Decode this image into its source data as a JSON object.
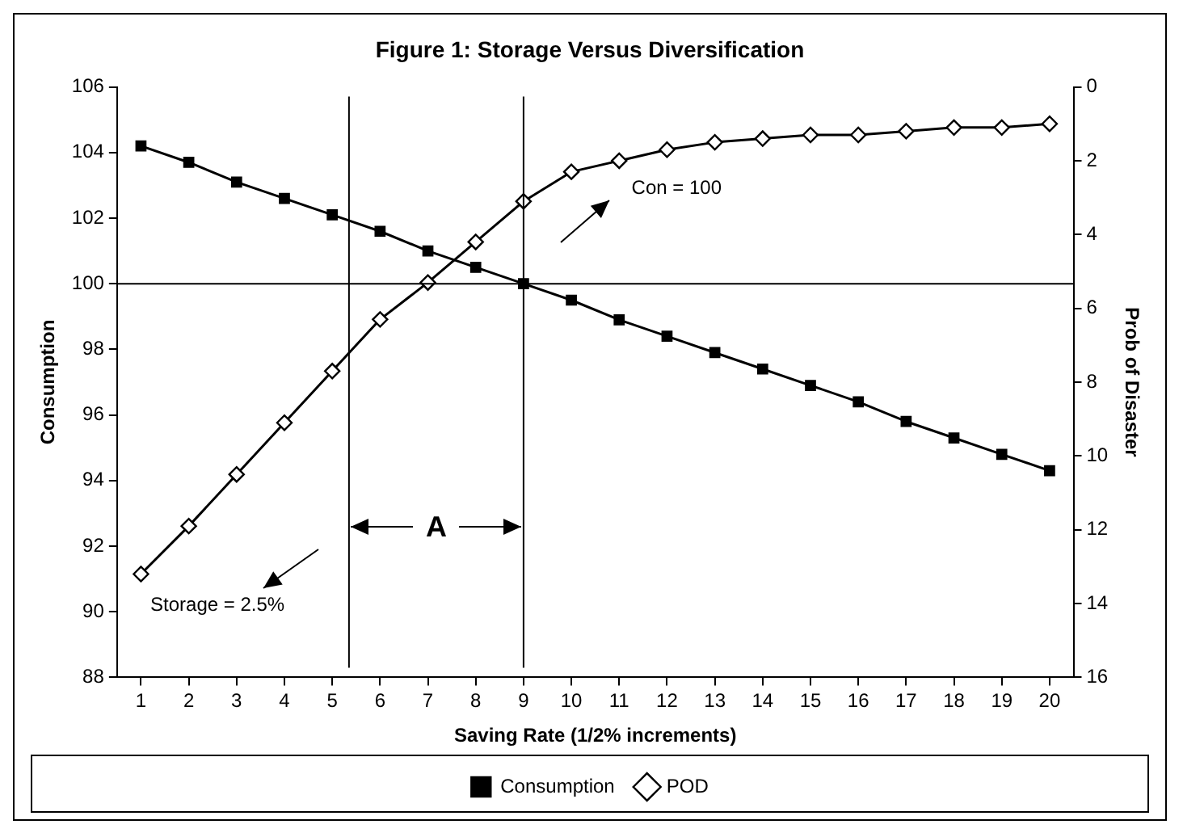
{
  "chart_data": {
    "type": "line",
    "title": "Figure 1: Storage Versus Diversification",
    "xlabel": "Saving Rate (1/2% increments)",
    "ylabel": "Consumption",
    "y2label": "Prob of Disaster",
    "x": [
      1,
      2,
      3,
      4,
      5,
      6,
      7,
      8,
      9,
      10,
      11,
      12,
      13,
      14,
      15,
      16,
      17,
      18,
      19,
      20
    ],
    "xlim": [
      0.5,
      20.5
    ],
    "xticks": [
      1,
      2,
      3,
      4,
      5,
      6,
      7,
      8,
      9,
      10,
      11,
      12,
      13,
      14,
      15,
      16,
      17,
      18,
      19,
      20
    ],
    "ylim": [
      88,
      106
    ],
    "yticks": [
      88,
      90,
      92,
      94,
      96,
      98,
      100,
      102,
      104,
      106
    ],
    "y2lim": [
      16,
      0
    ],
    "y2ticks": [
      0,
      2,
      4,
      6,
      8,
      10,
      12,
      14,
      16
    ],
    "series": [
      {
        "name": "Consumption",
        "color": "#000000",
        "marker": "square",
        "values": [
          104.2,
          103.7,
          103.1,
          102.6,
          102.1,
          101.6,
          101.0,
          100.5,
          100.0,
          99.5,
          98.9,
          98.4,
          97.9,
          97.4,
          96.9,
          96.4,
          95.8,
          95.3,
          94.8,
          94.3
        ]
      },
      {
        "name": "POD",
        "color": "#000000",
        "marker": "diamond",
        "axis": "y2",
        "values": [
          13.2,
          11.9,
          10.5,
          9.1,
          7.7,
          6.3,
          5.3,
          4.2,
          3.1,
          2.3,
          2.0,
          1.7,
          1.5,
          1.4,
          1.3,
          1.3,
          1.2,
          1.1,
          1.1,
          1.0
        ]
      }
    ],
    "ref_lines": [
      {
        "axis": "y",
        "value": 100
      },
      {
        "axis": "x",
        "value": 5.35
      },
      {
        "axis": "x",
        "value": 9
      }
    ],
    "annotations": [
      {
        "text": "A",
        "x": 9,
        "y": 92.6
      },
      "Con = 100",
      "Storage = 2.5%"
    ],
    "grid": false,
    "legend": "bottom",
    "line_style": "solid"
  }
}
